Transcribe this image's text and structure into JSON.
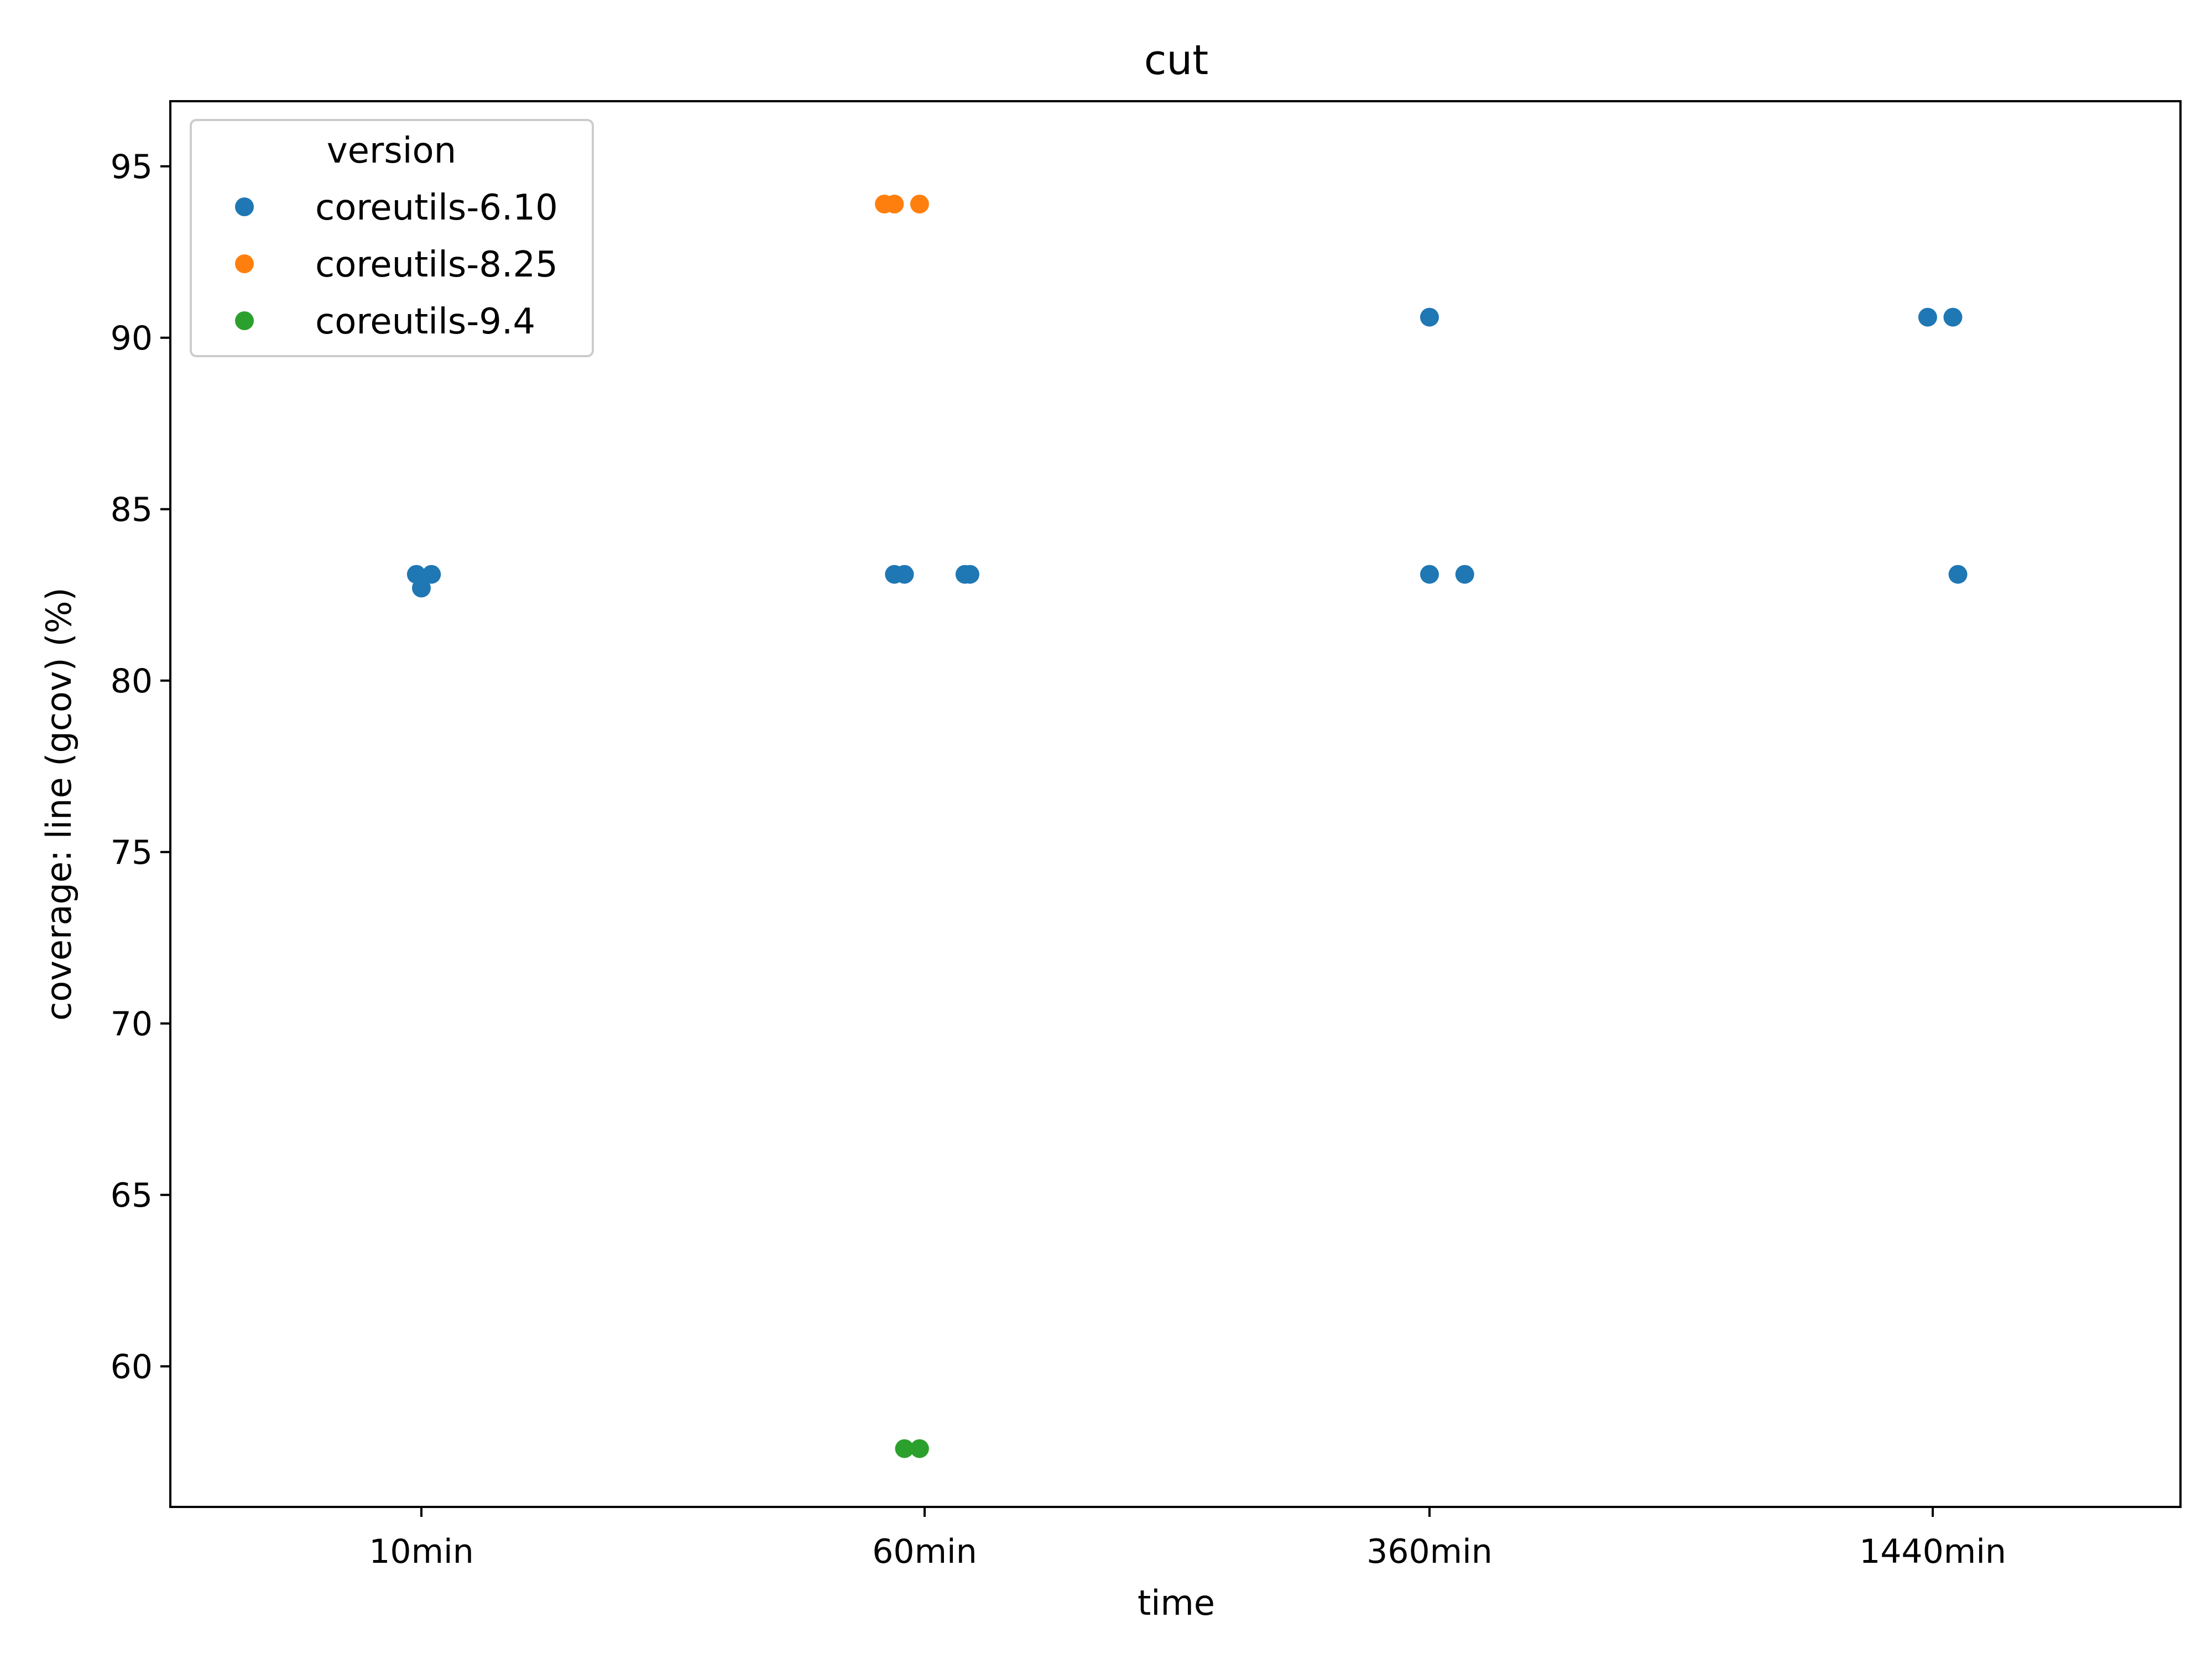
{
  "chart_data": {
    "type": "scatter",
    "title": "cut",
    "xlabel": "time",
    "ylabel": "coverage: line (gcov) (%)",
    "categories": [
      "10min",
      "60min",
      "360min",
      "1440min"
    ],
    "yticks": [
      60,
      65,
      70,
      75,
      80,
      85,
      90,
      95
    ],
    "ylim": [
      55.9,
      96.9
    ],
    "grid": false,
    "legend": {
      "title": "version",
      "placement": "top-left"
    },
    "series": [
      {
        "name": "coreutils-6.10",
        "color": "#1f77b4",
        "points": [
          {
            "category": "10min",
            "jitter": -0.01,
            "y": 83.1
          },
          {
            "category": "10min",
            "jitter": 0.02,
            "y": 83.1
          },
          {
            "category": "10min",
            "jitter": 0.0,
            "y": 82.7
          },
          {
            "category": "60min",
            "jitter": -0.06,
            "y": 83.1
          },
          {
            "category": "60min",
            "jitter": -0.04,
            "y": 83.1
          },
          {
            "category": "60min",
            "jitter": 0.08,
            "y": 83.1
          },
          {
            "category": "60min",
            "jitter": 0.09,
            "y": 83.1
          },
          {
            "category": "360min",
            "jitter": 0.0,
            "y": 90.6
          },
          {
            "category": "360min",
            "jitter": 0.0,
            "y": 83.1
          },
          {
            "category": "360min",
            "jitter": 0.07,
            "y": 83.1
          },
          {
            "category": "1440min",
            "jitter": -0.01,
            "y": 90.6
          },
          {
            "category": "1440min",
            "jitter": 0.04,
            "y": 90.6
          },
          {
            "category": "1440min",
            "jitter": 0.05,
            "y": 83.1
          }
        ]
      },
      {
        "name": "coreutils-8.25",
        "color": "#ff7f0e",
        "points": [
          {
            "category": "60min",
            "jitter": -0.08,
            "y": 93.9
          },
          {
            "category": "60min",
            "jitter": -0.06,
            "y": 93.9
          },
          {
            "category": "60min",
            "jitter": -0.01,
            "y": 93.9
          }
        ]
      },
      {
        "name": "coreutils-9.4",
        "color": "#2ca02c",
        "points": [
          {
            "category": "60min",
            "jitter": -0.04,
            "y": 57.6
          },
          {
            "category": "60min",
            "jitter": -0.01,
            "y": 57.6
          }
        ]
      }
    ]
  }
}
